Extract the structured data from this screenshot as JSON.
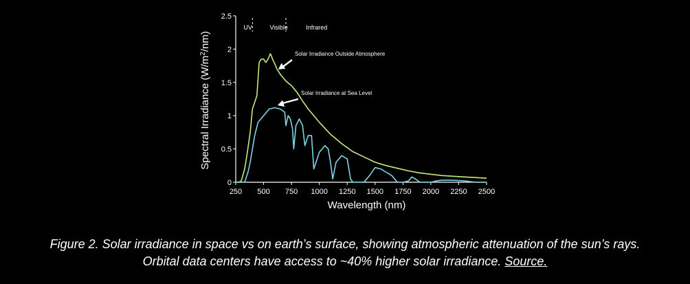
{
  "chart_data": {
    "type": "line",
    "title": "",
    "xlabel": "Wavelength (nm)",
    "ylabel": "Spectral Irradiance (W/m²/nm)",
    "ylabel_parts": {
      "pre": "Spectral Irradiance (W/m",
      "sup": "2",
      "post": "/nm)"
    },
    "xlim": [
      250,
      2500
    ],
    "ylim": [
      0,
      2.5
    ],
    "xticks": [
      250,
      500,
      750,
      1000,
      1250,
      1500,
      1750,
      2000,
      2250,
      2500
    ],
    "yticks": [
      0,
      0.5,
      1,
      1.5,
      2,
      2.5
    ],
    "ytick_labels": [
      "0",
      "0.5",
      "1",
      "1.5",
      "2",
      "2.5"
    ],
    "grid": false,
    "regions": [
      {
        "label": "UV",
        "x": 320
      },
      {
        "label": "Visible",
        "x": 555
      },
      {
        "label": "Infrared",
        "x": 880
      }
    ],
    "region_dividers": [
      400,
      700
    ],
    "series": [
      {
        "name": "Solar Irradiance Outside Atmosphere",
        "color": "#c6ec7c",
        "x": [
          250,
          280,
          300,
          330,
          350,
          380,
          400,
          420,
          440,
          460,
          480,
          500,
          520,
          540,
          560,
          570,
          580,
          600,
          620,
          650,
          700,
          750,
          800,
          850,
          900,
          1000,
          1100,
          1200,
          1300,
          1400,
          1500,
          1600,
          1700,
          1800,
          1900,
          2000,
          2100,
          2200,
          2300,
          2400,
          2500
        ],
        "y": [
          0.0,
          0.0,
          0.02,
          0.2,
          0.4,
          0.75,
          1.1,
          1.2,
          1.3,
          1.8,
          1.85,
          1.85,
          1.8,
          1.85,
          1.93,
          1.9,
          1.85,
          1.78,
          1.7,
          1.62,
          1.52,
          1.45,
          1.35,
          1.22,
          1.1,
          0.9,
          0.72,
          0.58,
          0.46,
          0.38,
          0.3,
          0.25,
          0.21,
          0.17,
          0.14,
          0.12,
          0.1,
          0.09,
          0.08,
          0.07,
          0.06
        ]
      },
      {
        "name": "Solar Irradiance at Sea Level",
        "color": "#7fd6e6",
        "x": [
          250,
          300,
          330,
          360,
          380,
          400,
          420,
          450,
          500,
          550,
          600,
          650,
          690,
          700,
          720,
          740,
          760,
          770,
          790,
          820,
          850,
          870,
          900,
          930,
          950,
          1000,
          1050,
          1080,
          1100,
          1120,
          1150,
          1200,
          1250,
          1280,
          1300,
          1320,
          1350,
          1400,
          1450,
          1500,
          1550,
          1600,
          1650,
          1700,
          1750,
          1800,
          1830,
          1870,
          1900,
          1950,
          2000,
          2050,
          2100,
          2200,
          2300,
          2400,
          2500
        ],
        "y": [
          0.0,
          0.0,
          0.0,
          0.15,
          0.3,
          0.5,
          0.7,
          0.9,
          1.0,
          1.1,
          1.12,
          1.1,
          1.05,
          0.85,
          1.0,
          0.95,
          0.8,
          0.5,
          0.85,
          0.95,
          0.85,
          0.55,
          0.7,
          0.7,
          0.2,
          0.45,
          0.55,
          0.5,
          0.3,
          0.05,
          0.3,
          0.4,
          0.35,
          0.05,
          0.0,
          0.0,
          0.0,
          0.0,
          0.1,
          0.22,
          0.2,
          0.15,
          0.1,
          0.0,
          0.0,
          0.02,
          0.08,
          0.04,
          0.0,
          0.0,
          0.0,
          0.02,
          0.03,
          0.03,
          0.02,
          0.0,
          0.0
        ]
      }
    ],
    "annotations": [
      {
        "text": "Solar Irradiance Outside Atmosphere",
        "x": 590,
        "y": 1.78
      },
      {
        "text": "Solar Irradiance at Sea Level",
        "x": 640,
        "y": 1.18
      }
    ]
  },
  "caption": {
    "line1": "Figure 2. Solar irradiance in space vs on earth’s surface, showing atmospheric attenuation of the sun’s rays.",
    "line2": "Orbital data centers have access to ~40% higher solar irradiance.",
    "source_link": "Source."
  }
}
